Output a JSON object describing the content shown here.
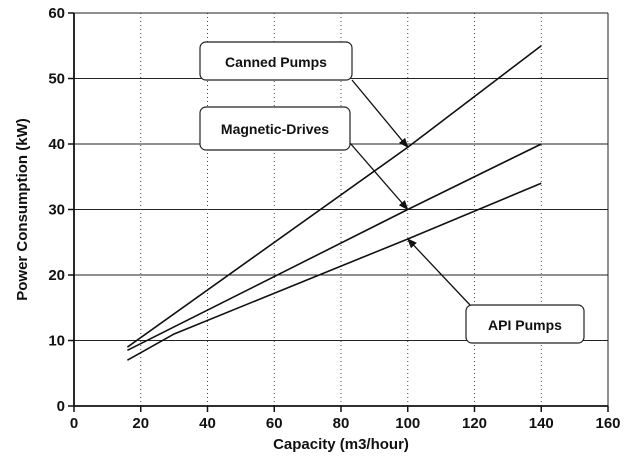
{
  "chart_data": {
    "type": "line",
    "xlabel": "Capacity (m3/hour)",
    "ylabel": "Power Consumption (kW)",
    "xlim": [
      0,
      160
    ],
    "ylim": [
      0,
      60
    ],
    "x_ticks": [
      "0",
      "20",
      "40",
      "60",
      "80",
      "100",
      "120",
      "140",
      "160"
    ],
    "y_ticks": [
      "0",
      "10",
      "20",
      "30",
      "40",
      "50",
      "60"
    ],
    "grid": "horizontal solid, vertical dotted",
    "legend": "callout boxes with arrows",
    "series": [
      {
        "name": "Canned Pumps",
        "color": "#111111",
        "x": [
          16,
          100,
          140
        ],
        "y": [
          9,
          39.5,
          55
        ]
      },
      {
        "name": "Magnetic-Drives",
        "color": "#111111",
        "x": [
          16,
          100,
          140
        ],
        "y": [
          8.5,
          30,
          40
        ]
      },
      {
        "name": "API Pumps",
        "color": "#111111",
        "x": [
          16,
          30,
          100,
          140
        ],
        "y": [
          7,
          11,
          25.5,
          34
        ]
      }
    ],
    "annotations": [
      {
        "text": "Canned Pumps",
        "target_x": 100,
        "target_y": 39.5
      },
      {
        "text": "Magnetic-Drives",
        "target_x": 100,
        "target_y": 30
      },
      {
        "text": "API Pumps",
        "target_x": 100,
        "target_y": 25.5
      }
    ]
  }
}
